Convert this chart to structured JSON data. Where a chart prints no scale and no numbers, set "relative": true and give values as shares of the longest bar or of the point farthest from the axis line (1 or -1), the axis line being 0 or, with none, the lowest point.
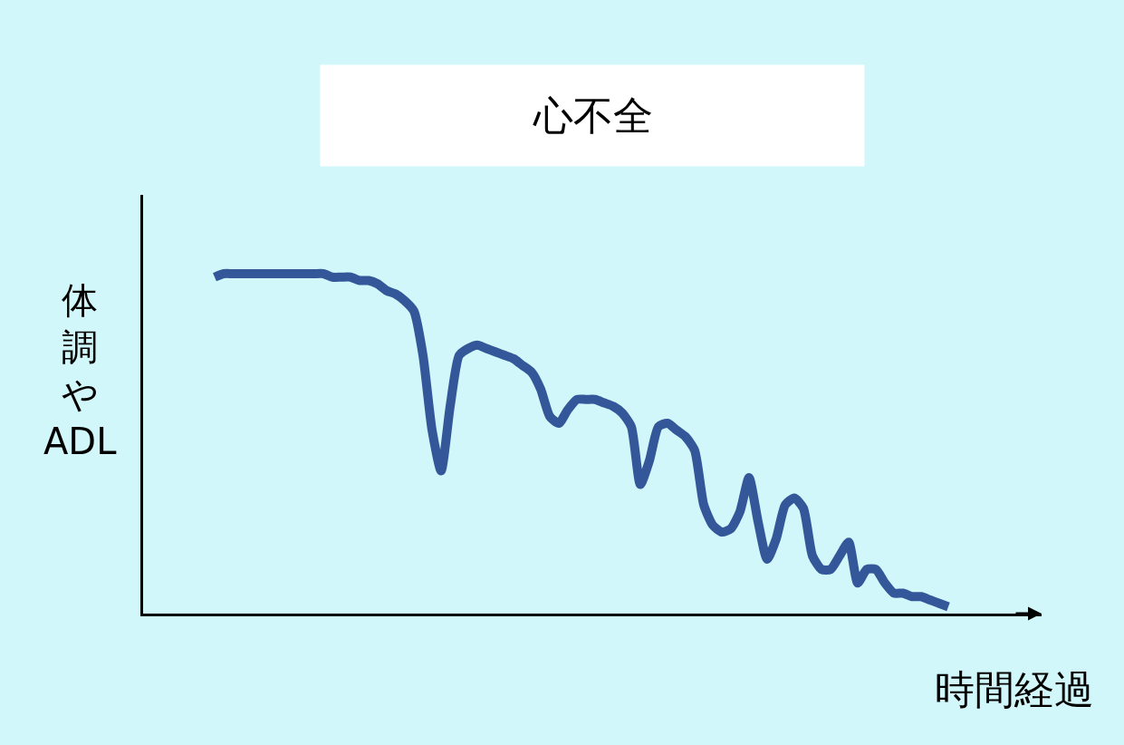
{
  "chart_data": {
    "type": "line",
    "title": "心不全",
    "xlabel": "時間経過",
    "ylabel": "体調やADL",
    "relative": true,
    "color": "#34579a",
    "grid": false,
    "legend": false,
    "marker": "none",
    "line_style": "solid",
    "categories": [
      null,
      null,
      null,
      null,
      null,
      null,
      null,
      null,
      null,
      null,
      null,
      null,
      null,
      null,
      null,
      null,
      null,
      null,
      null,
      null,
      null,
      null,
      null,
      null,
      null,
      null,
      null,
      null,
      null,
      null,
      null,
      null,
      null,
      null,
      null,
      null,
      null,
      null,
      null,
      null,
      null,
      null,
      null,
      null,
      null,
      null,
      null,
      null,
      null,
      null,
      null,
      null,
      null,
      null,
      null,
      null,
      null,
      null,
      null,
      null,
      null,
      null,
      null,
      null,
      null,
      null,
      null,
      null,
      null,
      null,
      null,
      null,
      null,
      null,
      null,
      null,
      null,
      null,
      null,
      null,
      null,
      null
    ],
    "values": [
      0.99,
      1.0,
      1.0,
      1.0,
      1.0,
      1.0,
      1.0,
      1.0,
      1.0,
      1.0,
      1.0,
      1.0,
      1.0,
      0.99,
      0.99,
      0.99,
      0.98,
      0.98,
      0.97,
      0.95,
      0.94,
      0.92,
      0.89,
      0.76,
      0.54,
      0.42,
      0.61,
      0.76,
      0.78,
      0.79,
      0.78,
      0.77,
      0.76,
      0.75,
      0.73,
      0.71,
      0.66,
      0.58,
      0.56,
      0.6,
      0.63,
      0.63,
      0.63,
      0.62,
      0.61,
      0.59,
      0.55,
      0.38,
      0.45,
      0.55,
      0.56,
      0.54,
      0.52,
      0.48,
      0.32,
      0.26,
      0.24,
      0.25,
      0.3,
      0.4,
      0.27,
      0.16,
      0.22,
      0.32,
      0.34,
      0.31,
      0.17,
      0.13,
      0.13,
      0.17,
      0.21,
      0.09,
      0.13,
      0.13,
      0.09,
      0.06,
      0.06,
      0.05,
      0.05,
      0.04,
      0.03,
      0.02
    ]
  }
}
